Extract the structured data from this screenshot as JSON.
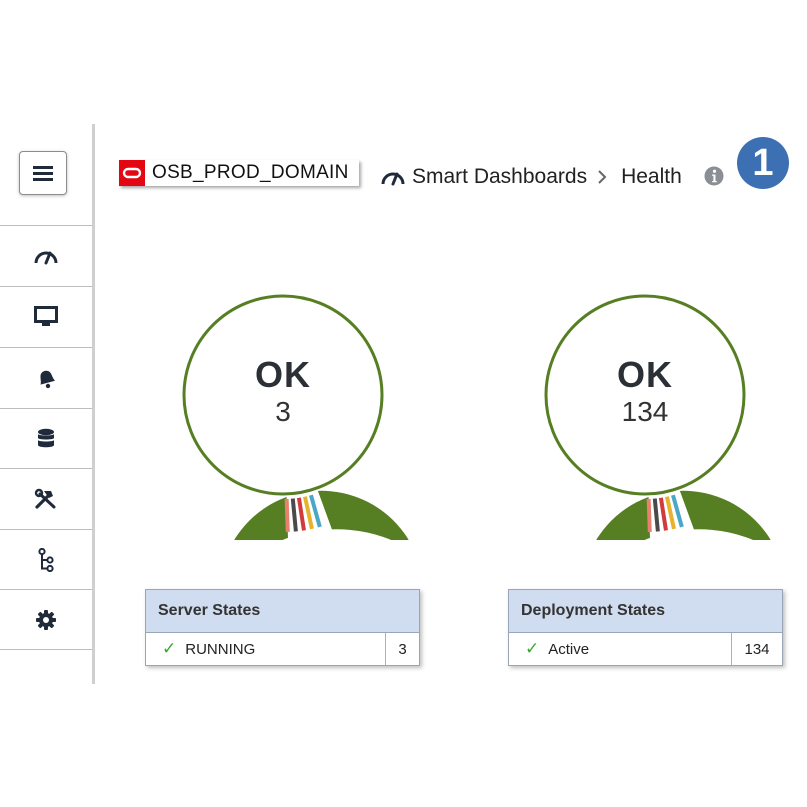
{
  "header": {
    "domain": "OSB_PROD_DOMAIN",
    "breadcrumbs": [
      "Smart Dashboards",
      "Health"
    ],
    "step_badge": "1"
  },
  "nav": {
    "items": [
      {
        "icon": "speedometer-icon"
      },
      {
        "icon": "monitor-icon"
      },
      {
        "icon": "bell-icon"
      },
      {
        "icon": "database-icon"
      },
      {
        "icon": "tools-icon"
      },
      {
        "icon": "flow-icon"
      },
      {
        "icon": "gear-icon"
      }
    ]
  },
  "widgets": [
    {
      "status": "OK",
      "count": "3",
      "table_title": "Server States",
      "rows": [
        {
          "label": "RUNNING",
          "value": "3"
        }
      ]
    },
    {
      "status": "OK",
      "count": "134",
      "table_title": "Deployment States",
      "rows": [
        {
          "label": "Active",
          "value": "134"
        }
      ]
    }
  ],
  "colors": {
    "ok_green": "#567e22",
    "legend_stripes": [
      "#e8806f",
      "#4a4a4a",
      "#d23b3b",
      "#e8b32c",
      "#4aa7c9"
    ],
    "step_badge": "#3d6fb3",
    "oracle_red": "#e30613"
  }
}
